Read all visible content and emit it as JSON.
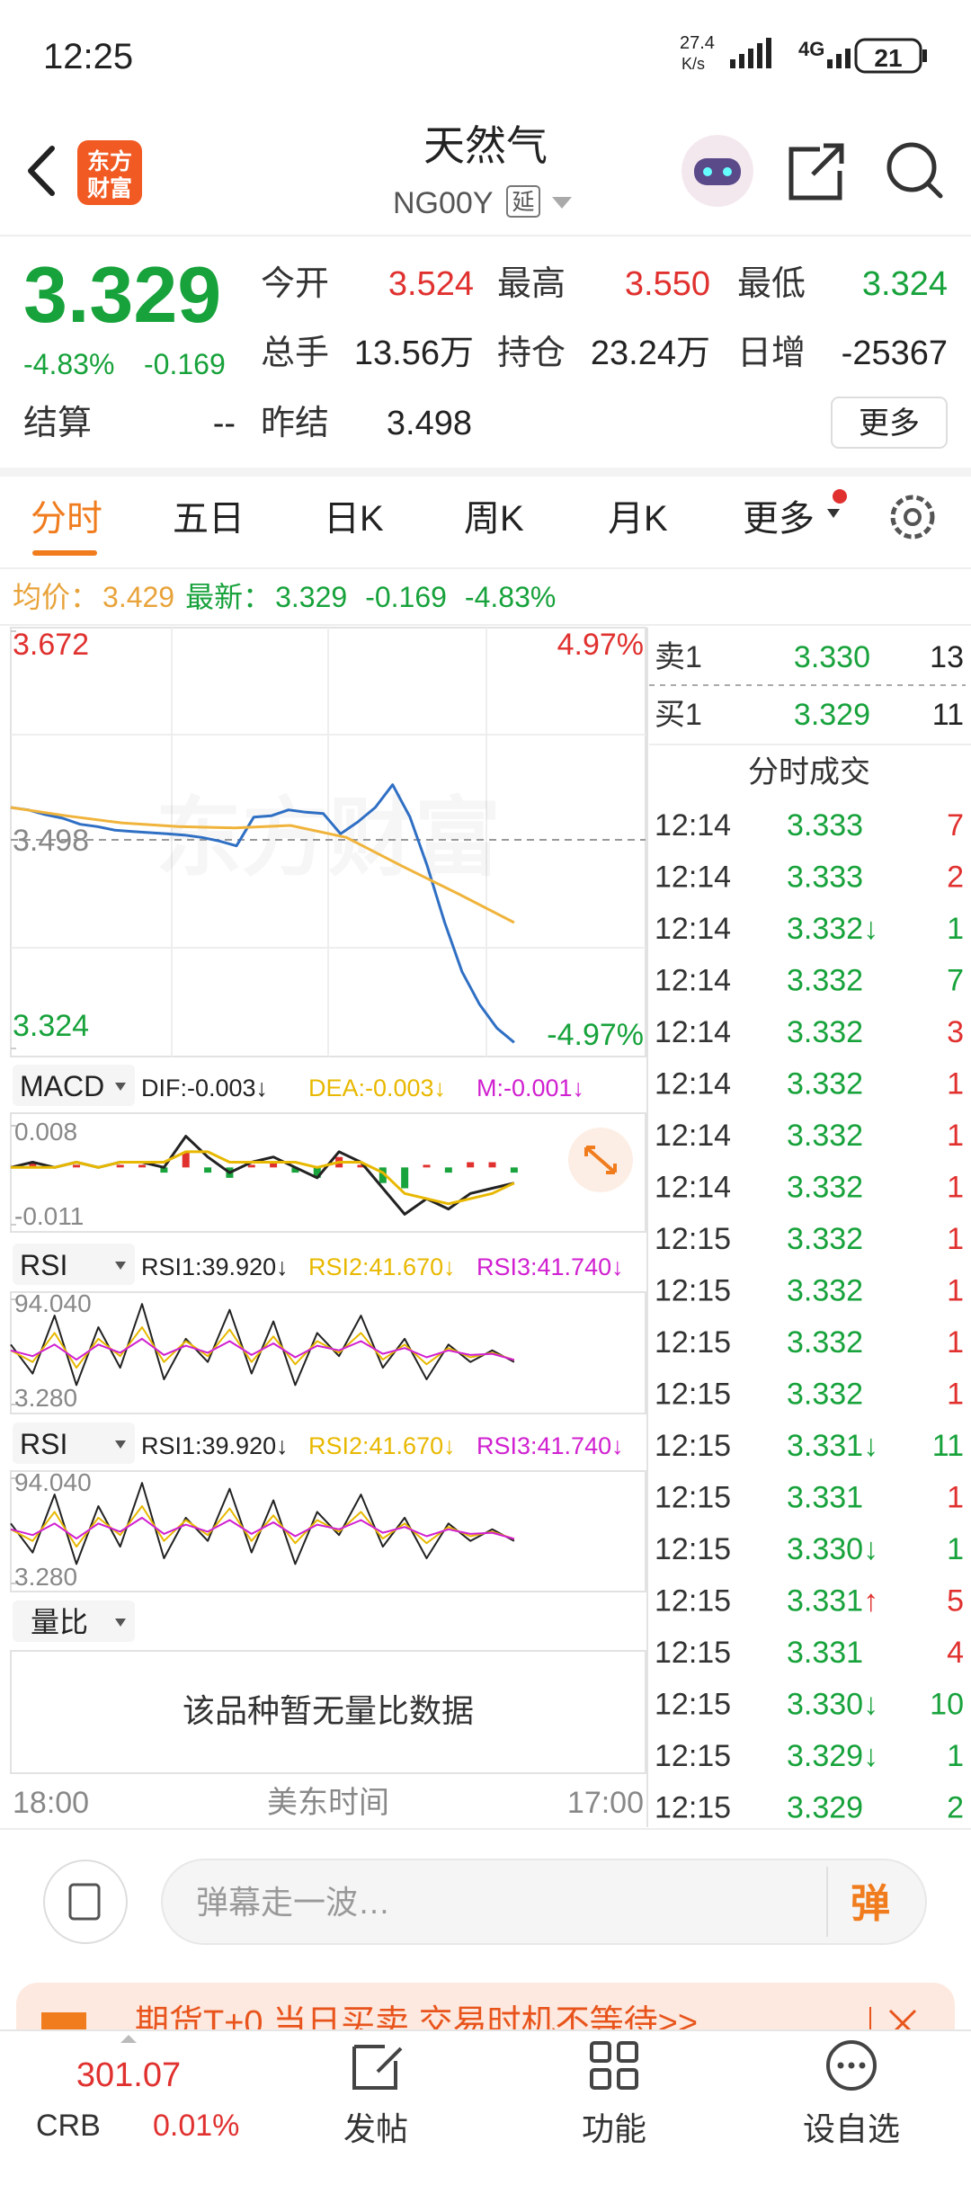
{
  "status_bar": {
    "time": "12:25",
    "net_speed": "27.4",
    "net_unit": "K/s",
    "network": "4G",
    "battery": "21"
  },
  "header": {
    "logo": [
      "东方",
      "财富"
    ],
    "title": "天然气",
    "code": "NG00Y",
    "delay_tag": "延"
  },
  "quote": {
    "price": "3.329",
    "change_pct": "-4.83%",
    "change": "-0.169",
    "fields": [
      {
        "label": "今开",
        "value": "3.524"
      },
      {
        "label": "最高",
        "value": "3.550"
      },
      {
        "label": "最低",
        "value": "3.324"
      },
      {
        "label": "总手",
        "value": "13.56万"
      },
      {
        "label": "持仓",
        "value": "23.24万"
      },
      {
        "label": "日增",
        "value": "-25367"
      },
      {
        "label": "结算",
        "value": "--"
      },
      {
        "label": "昨结",
        "value": "3.498"
      }
    ],
    "more": "更多"
  },
  "tabs": [
    "分时",
    "五日",
    "日K",
    "周K",
    "月K",
    "更多"
  ],
  "summary": {
    "avg_label": "均价：",
    "avg": "3.429",
    "last_label": "最新：",
    "last": "3.329",
    "change": "-0.169",
    "change_pct": "-4.83%"
  },
  "intraday": {
    "ylim": [
      3.324,
      3.672
    ],
    "yticks": [
      3.672,
      3.498,
      3.324
    ],
    "pct_labels": [
      "4.97%",
      "-4.97%"
    ],
    "watermark": "东方财富",
    "series": [
      {
        "color": "#2f6fc4",
        "values": [
          3.525,
          3.523,
          3.519,
          3.516,
          3.511,
          3.509,
          3.506,
          3.505,
          3.504,
          3.503,
          3.502,
          3.5,
          3.497,
          3.493,
          3.517,
          3.518,
          3.523,
          3.521,
          3.52,
          3.503,
          3.513,
          3.525,
          3.544,
          3.517,
          3.476,
          3.429,
          3.388,
          3.361,
          3.341,
          3.329
        ]
      },
      {
        "color": "#f0b43c",
        "values": [
          3.525,
          3.518,
          3.512,
          3.509,
          3.508,
          3.51,
          3.5,
          3.476,
          3.453,
          3.429
        ]
      }
    ],
    "x_labels": [
      "18:00",
      "美东时间",
      "17:00"
    ]
  },
  "macd": {
    "selector": "MACD",
    "readouts": [
      {
        "text": "DIF:-0.003↓",
        "color": "#222"
      },
      {
        "text": "DEA:-0.003↓",
        "color": "#e8b800"
      },
      {
        "text": "M:-0.001↓",
        "color": "#d020d0"
      }
    ],
    "ylim": [
      -0.011,
      0.008
    ],
    "yticks": [
      0.008,
      -0.011
    ],
    "series": [
      {
        "color": "#222",
        "values": [
          0.0,
          0.001,
          0.0,
          0.001,
          0.0,
          0.001,
          0.001,
          0.0,
          0.006,
          0.002,
          -0.001,
          0.001,
          0.002,
          0.0,
          -0.002,
          0.003,
          0.001,
          -0.004,
          -0.009,
          -0.006,
          -0.008,
          -0.005,
          -0.004,
          -0.003
        ]
      },
      {
        "color": "#e8b800",
        "values": [
          0.0,
          0.0,
          0.0,
          0.001,
          0.0,
          0.001,
          0.001,
          0.001,
          0.003,
          0.003,
          0.001,
          0.001,
          0.001,
          0.001,
          0.0,
          0.001,
          0.001,
          -0.001,
          -0.005,
          -0.006,
          -0.007,
          -0.006,
          -0.005,
          -0.003
        ]
      }
    ],
    "histogram": {
      "up_color": "#e0312f",
      "down_color": "#18a33c",
      "values": [
        0.0,
        0.001,
        0.0,
        0.0005,
        0.0,
        0.0005,
        0.0005,
        -0.001,
        0.003,
        -0.001,
        -0.002,
        0.0005,
        0.001,
        -0.001,
        -0.002,
        0.002,
        0.0005,
        -0.003,
        -0.004,
        0.0005,
        -0.001,
        0.001,
        0.001,
        -0.001
      ]
    }
  },
  "rsi_panels": [
    {
      "selector": "RSI",
      "readouts": [
        {
          "text": "RSI1:39.920↓",
          "color": "#222"
        },
        {
          "text": "RSI2:41.670↓",
          "color": "#e8b800"
        },
        {
          "text": "RSI3:41.740↓",
          "color": "#d020d0"
        }
      ],
      "ylim": [
        3.28,
        94.04
      ],
      "yticks": [
        {
          "value": 94.04,
          "label": "94.040"
        },
        {
          "value": 3.28,
          "label": "3.280"
        }
      ],
      "series": [
        {
          "color": "#222",
          "values": [
            55,
            30,
            80,
            20,
            70,
            35,
            90,
            25,
            60,
            40,
            85,
            30,
            75,
            20,
            65,
            45,
            80,
            35,
            60,
            25,
            55,
            40,
            50,
            39.92
          ]
        },
        {
          "color": "#e8b800",
          "values": [
            50,
            40,
            65,
            35,
            60,
            45,
            70,
            40,
            58,
            45,
            68,
            40,
            62,
            38,
            58,
            48,
            65,
            42,
            55,
            38,
            52,
            44,
            48,
            41.67
          ]
        },
        {
          "color": "#d020d0",
          "values": [
            50,
            45,
            55,
            42,
            55,
            48,
            60,
            46,
            54,
            48,
            58,
            46,
            56,
            44,
            54,
            50,
            58,
            47,
            52,
            44,
            50,
            46,
            47,
            41.74
          ]
        }
      ]
    },
    {
      "selector": "RSI",
      "readouts": [
        {
          "text": "RSI1:39.920↓",
          "color": "#222"
        },
        {
          "text": "RSI2:41.670↓",
          "color": "#e8b800"
        },
        {
          "text": "RSI3:41.740↓",
          "color": "#d020d0"
        }
      ],
      "ylim": [
        3.28,
        94.04
      ],
      "yticks": [
        {
          "value": 94.04,
          "label": "94.040"
        },
        {
          "value": 3.28,
          "label": "3.280"
        }
      ],
      "series": [
        {
          "color": "#222",
          "values": [
            55,
            30,
            80,
            20,
            70,
            35,
            90,
            25,
            60,
            40,
            85,
            30,
            75,
            20,
            65,
            45,
            80,
            35,
            60,
            25,
            55,
            40,
            50,
            39.92
          ]
        },
        {
          "color": "#e8b800",
          "values": [
            50,
            40,
            65,
            35,
            60,
            45,
            70,
            40,
            58,
            45,
            68,
            40,
            62,
            38,
            58,
            48,
            65,
            42,
            55,
            38,
            52,
            44,
            48,
            41.67
          ]
        },
        {
          "color": "#d020d0",
          "values": [
            50,
            45,
            55,
            42,
            55,
            48,
            60,
            46,
            54,
            48,
            58,
            46,
            56,
            44,
            54,
            50,
            58,
            47,
            52,
            44,
            50,
            46,
            47,
            41.74
          ]
        }
      ]
    }
  ],
  "ratio": {
    "selector": "量比",
    "empty_text": "该品种暂无量比数据"
  },
  "order_book": [
    {
      "label": "卖1",
      "price": "3.330",
      "volume": "13"
    },
    {
      "label": "买1",
      "price": "3.329",
      "volume": "11"
    }
  ],
  "trades": {
    "title": "分时成交",
    "rows": [
      {
        "time": "12:14",
        "price": "3.333",
        "volume": "7",
        "color": "#e0312f"
      },
      {
        "time": "12:14",
        "price": "3.333",
        "volume": "2",
        "color": "#e0312f"
      },
      {
        "time": "12:14",
        "price": "3.332",
        "arrow": "↓",
        "volume": "1",
        "color": "#17a23b"
      },
      {
        "time": "12:14",
        "price": "3.332",
        "volume": "7",
        "color": "#17a23b"
      },
      {
        "time": "12:14",
        "price": "3.332",
        "volume": "3",
        "color": "#e0312f"
      },
      {
        "time": "12:14",
        "price": "3.332",
        "volume": "1",
        "color": "#e0312f"
      },
      {
        "time": "12:14",
        "price": "3.332",
        "volume": "1",
        "color": "#e0312f"
      },
      {
        "time": "12:14",
        "price": "3.332",
        "volume": "1",
        "color": "#e0312f"
      },
      {
        "time": "12:15",
        "price": "3.332",
        "volume": "1",
        "color": "#e0312f"
      },
      {
        "time": "12:15",
        "price": "3.332",
        "volume": "1",
        "color": "#e0312f"
      },
      {
        "time": "12:15",
        "price": "3.332",
        "volume": "1",
        "color": "#e0312f"
      },
      {
        "time": "12:15",
        "price": "3.332",
        "volume": "1",
        "color": "#e0312f"
      },
      {
        "time": "12:15",
        "price": "3.331",
        "arrow": "↓",
        "volume": "11",
        "color": "#17a23b"
      },
      {
        "time": "12:15",
        "price": "3.331",
        "volume": "1",
        "color": "#e0312f"
      },
      {
        "time": "12:15",
        "price": "3.330",
        "arrow": "↓",
        "volume": "1",
        "color": "#17a23b"
      },
      {
        "time": "12:15",
        "price": "3.331",
        "arrow": "↑",
        "volume": "5",
        "color": "#e0312f"
      },
      {
        "time": "12:15",
        "price": "3.331",
        "volume": "4",
        "color": "#e0312f"
      },
      {
        "time": "12:15",
        "price": "3.330",
        "arrow": "↓",
        "volume": "10",
        "color": "#17a23b"
      },
      {
        "time": "12:15",
        "price": "3.329",
        "arrow": "↓",
        "volume": "1",
        "color": "#17a23b"
      },
      {
        "time": "12:15",
        "price": "3.329",
        "volume": "2",
        "color": "#17a23b"
      }
    ]
  },
  "comment": {
    "placeholder": "弹幕走一波…",
    "button": "弹"
  },
  "banner": "期货T+0  当日买卖  交易时机不等待>>",
  "bottom_nav": {
    "index_value": "301.07",
    "index_name": "CRB",
    "index_change": "0.01%",
    "items": [
      "发帖",
      "功能",
      "设自选"
    ]
  }
}
